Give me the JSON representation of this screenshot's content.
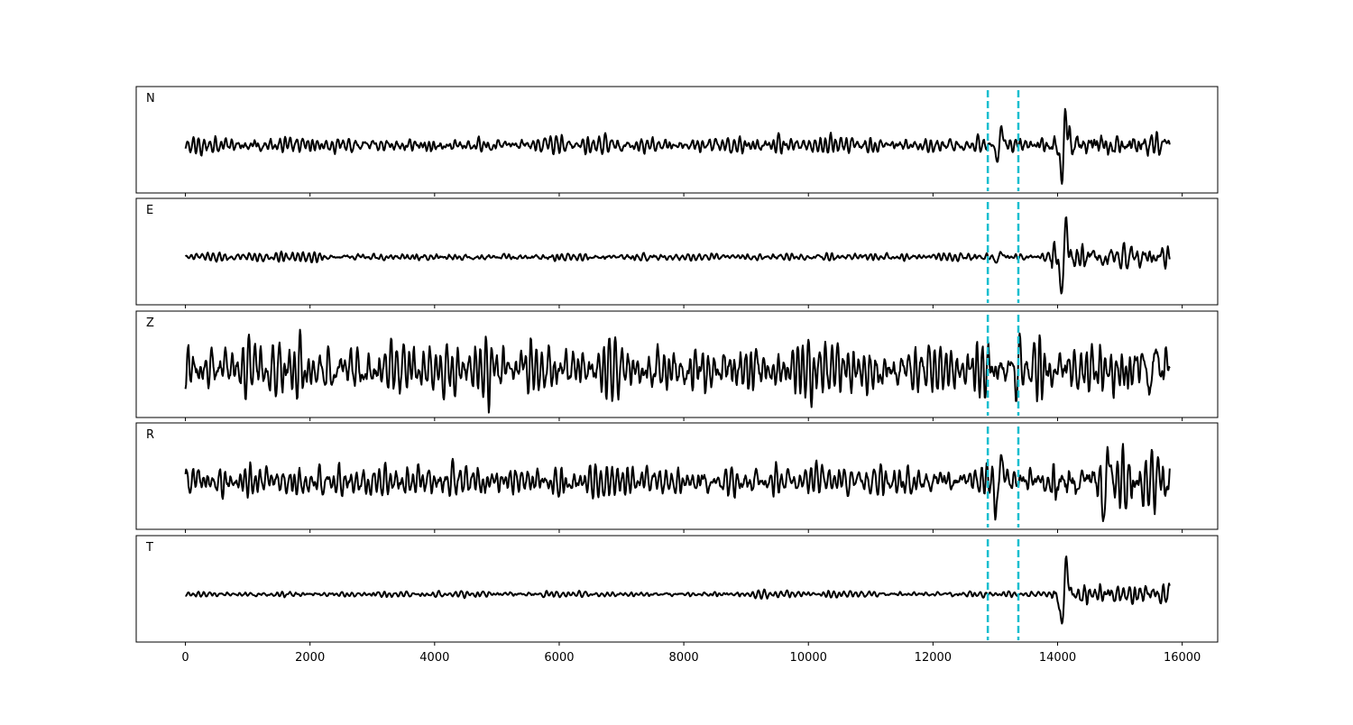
{
  "chart_data": {
    "type": "line",
    "layout": "5 stacked panels, shared x-axis",
    "xlim": [
      -790,
      16570
    ],
    "x_ticks": [
      0,
      2000,
      4000,
      6000,
      8000,
      10000,
      12000,
      14000,
      16000
    ],
    "x_tick_labels": [
      "0",
      "2000",
      "4000",
      "6000",
      "8000",
      "10000",
      "12000",
      "14000",
      "16000"
    ],
    "signal_x_range": [
      0,
      15800
    ],
    "y_ticks_shown": false,
    "grid": false,
    "line_color": "#000000",
    "marker_color": "#17becf",
    "vertical_markers": [
      12880,
      13370
    ],
    "panels": [
      {
        "label": "N",
        "noise_level": 0.16,
        "events": [
          {
            "x": 13060,
            "amp": 0.45
          },
          {
            "x": 14100,
            "amp": 0.95
          }
        ],
        "coda_level": 0.28
      },
      {
        "label": "E",
        "noise_level": 0.08,
        "events": [
          {
            "x": 13060,
            "amp": 0.2
          },
          {
            "x": 14100,
            "amp": 0.95
          }
        ],
        "coda_level": 0.25
      },
      {
        "label": "Z",
        "noise_level": 0.55,
        "events": [
          {
            "x": 13370,
            "amp": 0.5
          },
          {
            "x": 15530,
            "amp": 0.85
          }
        ],
        "coda_level": 0.55
      },
      {
        "label": "R",
        "noise_level": 0.32,
        "events": [
          {
            "x": 13060,
            "amp": 0.9
          },
          {
            "x": 14780,
            "amp": 0.95
          }
        ],
        "coda_level": 0.55
      },
      {
        "label": "T",
        "noise_level": 0.06,
        "events": [
          {
            "x": 14100,
            "amp": 1.0
          }
        ],
        "coda_level": 0.22
      }
    ]
  }
}
